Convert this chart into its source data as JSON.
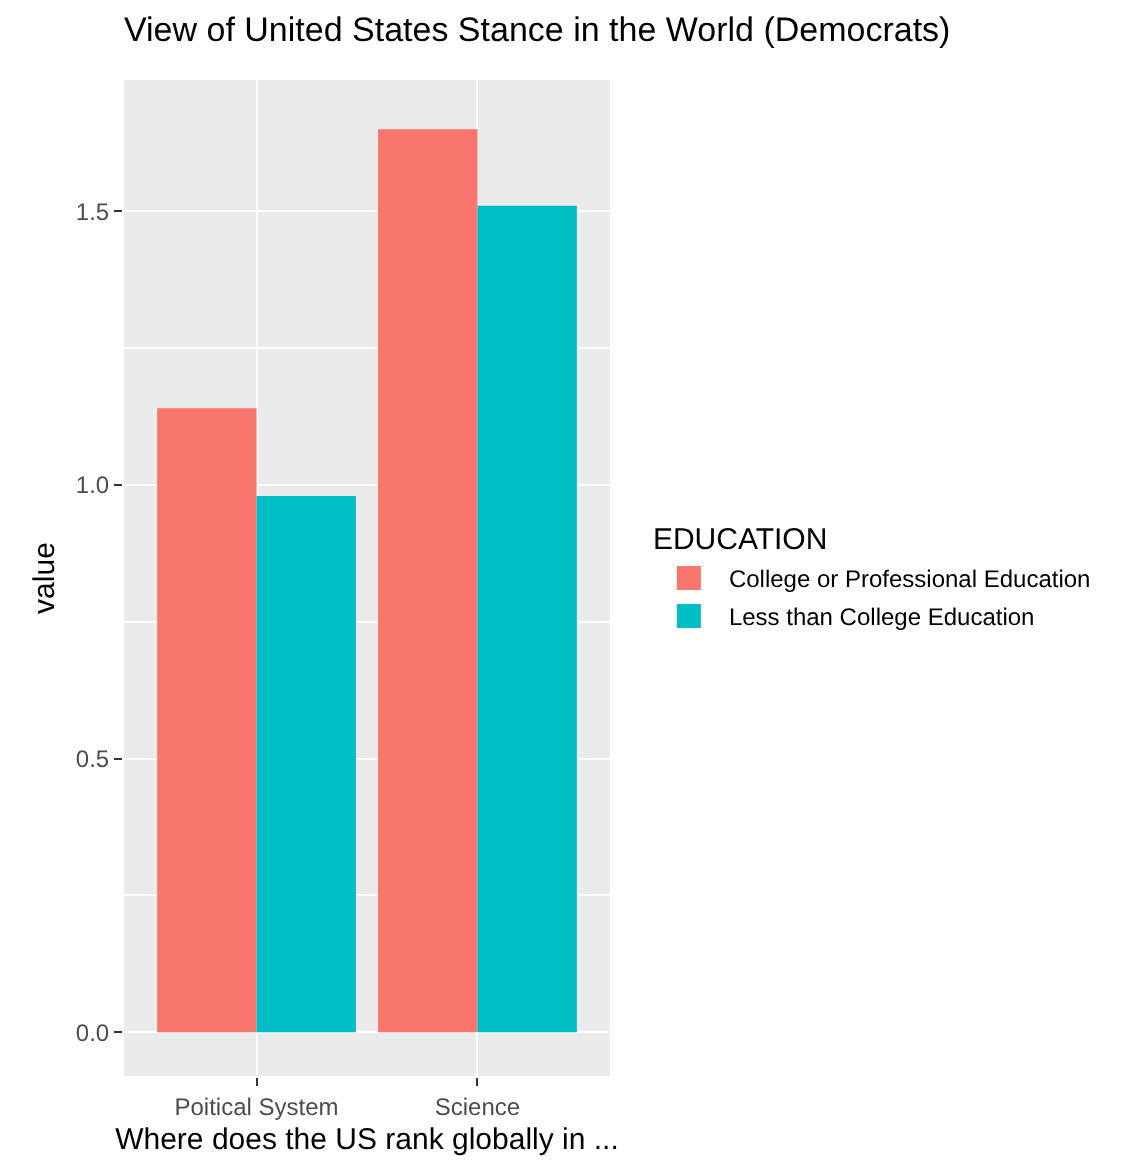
{
  "chart_data": {
    "type": "bar",
    "title": "View of United States Stance in the World (Democrats)",
    "xlabel": "Where does the US rank globally in ...",
    "ylabel": "value",
    "legend_title": "EDUCATION",
    "categories": [
      "Poitical System",
      "Science"
    ],
    "series": [
      {
        "name": "College or Professional Education",
        "color": "#f8766d",
        "values": [
          1.14,
          1.65
        ]
      },
      {
        "name": "Less than College Education",
        "color": "#00bfc4",
        "values": [
          0.98,
          1.51
        ]
      }
    ],
    "ylim": [
      -0.08,
      1.74
    ],
    "yticks": [
      {
        "value": 0,
        "label": "0.0"
      },
      {
        "value": 0.5,
        "label": "0.5"
      },
      {
        "value": 1,
        "label": "1.0"
      },
      {
        "value": 1.5,
        "label": "1.5"
      }
    ],
    "grid": true,
    "legend": "right"
  }
}
